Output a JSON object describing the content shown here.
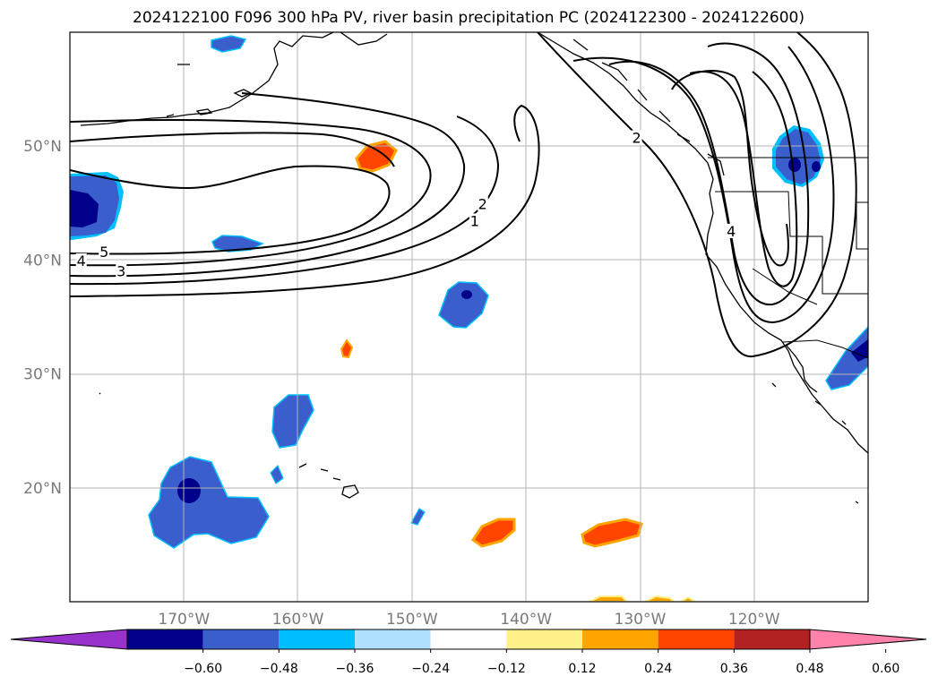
{
  "title": "2024122100 F096 300 hPa PV, river basin precipitation PC (2024122300 - 2024122600)",
  "map": {
    "projection": "PlateCarree",
    "lon_range": [
      -180,
      -110
    ],
    "lat_range": [
      10,
      60
    ],
    "gridlines": true,
    "lat_ticks": [
      {
        "lat": 50,
        "label": "50°N"
      },
      {
        "lat": 40,
        "label": "40°N"
      },
      {
        "lat": 30,
        "label": "30°N"
      },
      {
        "lat": 20,
        "label": "20°N"
      }
    ],
    "lon_ticks": [
      {
        "lon": -170,
        "label": "170°W"
      },
      {
        "lon": -160,
        "label": "160°W"
      },
      {
        "lon": -150,
        "label": "150°W"
      },
      {
        "lon": -140,
        "label": "140°W"
      },
      {
        "lon": -130,
        "label": "130°W"
      },
      {
        "lon": -120,
        "label": "120°W"
      }
    ]
  },
  "contour_labels": [
    {
      "text": "5",
      "lon": -177,
      "lat": 40.6
    },
    {
      "text": "4",
      "lon": -179,
      "lat": 39.8
    },
    {
      "text": "3",
      "lon": -175.5,
      "lat": 38.9
    },
    {
      "text": "2",
      "lon": -143.8,
      "lat": 44.8
    },
    {
      "text": "1",
      "lon": -144.5,
      "lat": 43.3
    },
    {
      "text": "2",
      "lon": -130.3,
      "lat": 50.6
    },
    {
      "text": "4",
      "lon": -122,
      "lat": 42.4
    }
  ],
  "colorbar": {
    "colors": [
      "#9932cc",
      "#00008b",
      "#3a5fcd",
      "#00bfff",
      "#b0e2ff",
      "#ffffff",
      "#fff08a",
      "#ffa500",
      "#ff4500",
      "#b22222",
      "#ff82ab"
    ],
    "ticks": [
      "−0.60",
      "−0.48",
      "−0.36",
      "−0.24",
      "−0.12",
      "0.12",
      "0.24",
      "0.36",
      "0.48",
      "0.60"
    ]
  }
}
